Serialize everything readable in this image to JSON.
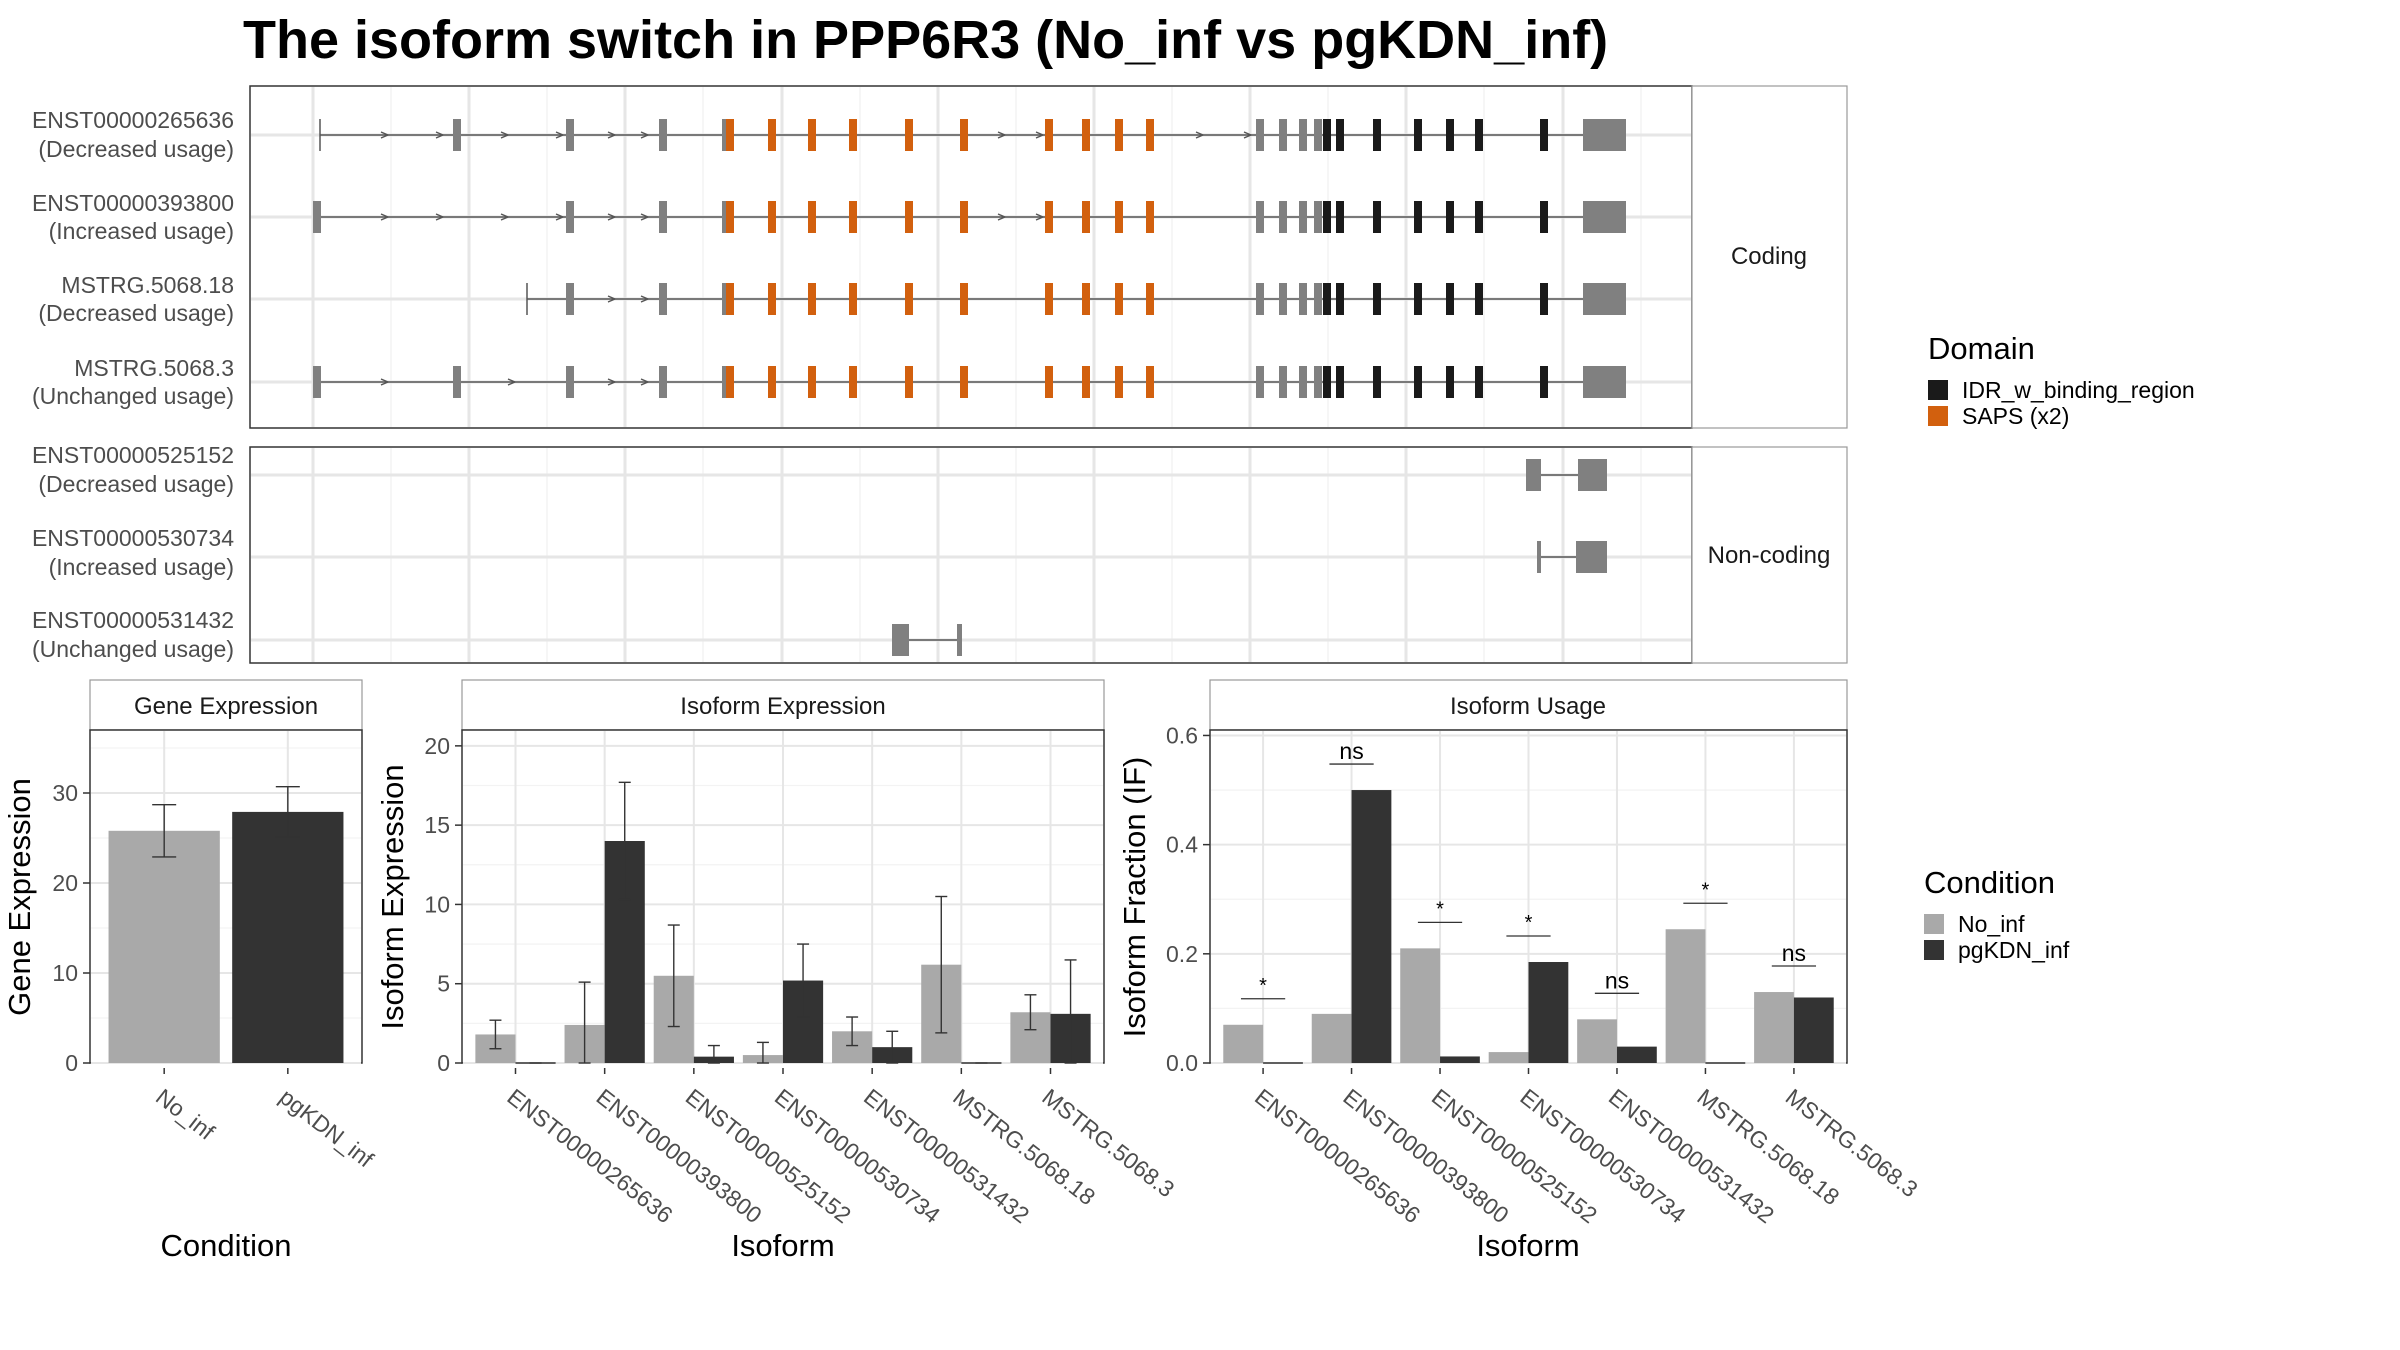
{
  "title": "The isoform switch in PPP6R3 (No_inf vs pgKDN_inf)",
  "colors": {
    "no_inf": "#a9a9a9",
    "pgkdn_inf": "#333333",
    "idr": "#1a1a1a",
    "saps": "#d2600e",
    "exon_gray": "#808080"
  },
  "transcripts": {
    "coding_label": "Coding",
    "noncoding_label": "Non-coding",
    "coding": [
      {
        "id": "ENST00000265636",
        "usage": "(Decreased usage)"
      },
      {
        "id": "ENST00000393800",
        "usage": "(Increased usage)"
      },
      {
        "id": "MSTRG.5068.18",
        "usage": "(Decreased usage)"
      },
      {
        "id": "MSTRG.5068.3",
        "usage": "(Unchanged usage)"
      }
    ],
    "noncoding": [
      {
        "id": "ENST00000525152",
        "usage": "(Decreased usage)"
      },
      {
        "id": "ENST00000530734",
        "usage": "(Increased usage)"
      },
      {
        "id": "ENST00000531432",
        "usage": "(Unchanged usage)"
      }
    ]
  },
  "legend_domain": {
    "title": "Domain",
    "items": [
      {
        "label": "IDR_w_binding_region",
        "color": "#1a1a1a"
      },
      {
        "label": "SAPS (x2)",
        "color": "#d2600e"
      }
    ]
  },
  "legend_condition": {
    "title": "Condition",
    "items": [
      {
        "label": "No_inf",
        "color": "#a9a9a9"
      },
      {
        "label": "pgKDN_inf",
        "color": "#333333"
      }
    ]
  },
  "chart_data": [
    {
      "type": "bar",
      "title": "Gene Expression",
      "xlabel": "Condition",
      "ylabel": "Gene Expression",
      "categories": [
        "No_inf",
        "pgKDN_inf"
      ],
      "values": [
        25.8,
        27.9
      ],
      "errors": [
        [
          22.9,
          28.7
        ],
        [
          25.1,
          30.7
        ]
      ],
      "ylim": [
        0,
        37
      ],
      "yticks": [
        0,
        10,
        20,
        30
      ]
    },
    {
      "type": "bar",
      "title": "Isoform Expression",
      "xlabel": "Isoform",
      "ylabel": "Isoform Expression",
      "categories": [
        "ENST00000265636",
        "ENST00000393800",
        "ENST00000525152",
        "ENST00000530734",
        "ENST00000531432",
        "MSTRG.5068.18",
        "MSTRG.5068.3"
      ],
      "series": [
        {
          "name": "No_inf",
          "values": [
            1.8,
            2.4,
            5.5,
            0.5,
            2.0,
            6.2,
            3.2
          ],
          "errors": [
            [
              0.9,
              2.7
            ],
            [
              0.0,
              5.1
            ],
            [
              2.3,
              8.7
            ],
            [
              0.0,
              1.3
            ],
            [
              1.1,
              2.9
            ],
            [
              1.9,
              10.5
            ],
            [
              2.1,
              4.3
            ]
          ]
        },
        {
          "name": "pgKDN_inf",
          "values": [
            0.0,
            14.0,
            0.4,
            5.2,
            1.0,
            0.0,
            3.1
          ],
          "errors": [
            [
              0.0,
              0.0
            ],
            [
              10.3,
              17.7
            ],
            [
              0.0,
              1.1
            ],
            [
              2.9,
              7.5
            ],
            [
              0.0,
              2.0
            ],
            [
              0.0,
              0.0
            ],
            [
              0.0,
              6.5
            ]
          ]
        }
      ],
      "ylim": [
        0,
        21
      ],
      "yticks": [
        0,
        5,
        10,
        15,
        20
      ]
    },
    {
      "type": "bar",
      "title": "Isoform Usage",
      "xlabel": "Isoform",
      "ylabel": "Isoform Fraction (IF)",
      "categories": [
        "ENST00000265636",
        "ENST00000393800",
        "ENST00000525152",
        "ENST00000530734",
        "ENST00000531432",
        "MSTRG.5068.18",
        "MSTRG.5068.3"
      ],
      "series": [
        {
          "name": "No_inf",
          "values": [
            0.07,
            0.09,
            0.21,
            0.02,
            0.08,
            0.245,
            0.13
          ]
        },
        {
          "name": "pgKDN_inf",
          "values": [
            0.0,
            0.5,
            0.012,
            0.185,
            0.03,
            0.0,
            0.12
          ]
        }
      ],
      "significance": [
        "*",
        "ns",
        "*",
        "*",
        "ns",
        "*",
        "ns"
      ],
      "ylim": [
        0,
        0.61
      ],
      "yticks": [
        0.0,
        0.2,
        0.4,
        0.6
      ],
      "ytick_labels": [
        "0.0",
        "0.2",
        "0.4",
        "0.6"
      ]
    }
  ]
}
